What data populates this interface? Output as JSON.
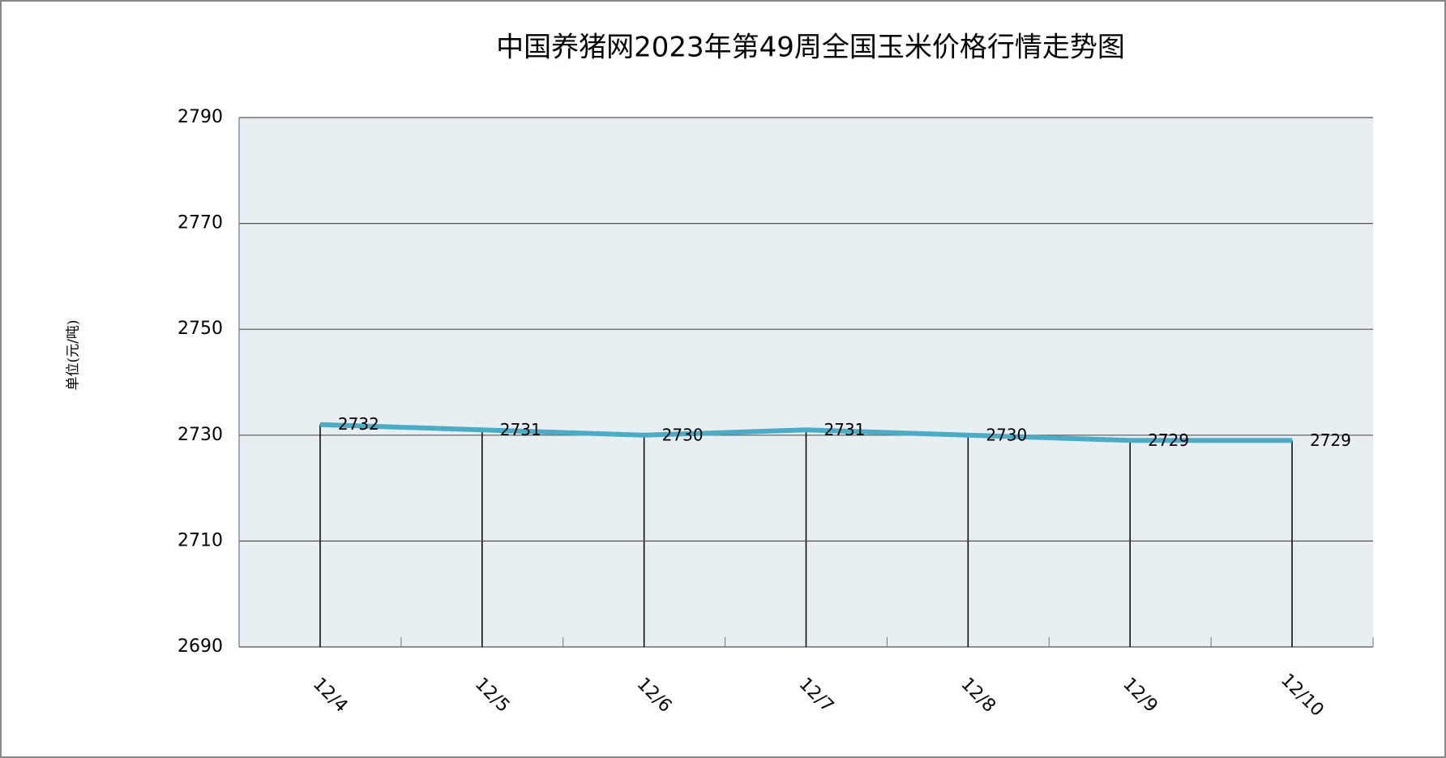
{
  "chart_data": {
    "type": "line",
    "title": "中国养猪网2023年第49周全国玉米价格行情走势图",
    "y_label": "单位(元/吨)",
    "categories": [
      "12/4",
      "12/5",
      "12/6",
      "12/7",
      "12/8",
      "12/9",
      "12/10"
    ],
    "values": [
      2732,
      2731,
      2730,
      2731,
      2730,
      2729,
      2729
    ],
    "color": "#4bacc6",
    "ylim": [
      2690,
      2790
    ],
    "yticks": [
      2690,
      2710,
      2730,
      2750,
      2770,
      2790
    ],
    "grid": true,
    "drop_lines": true
  }
}
